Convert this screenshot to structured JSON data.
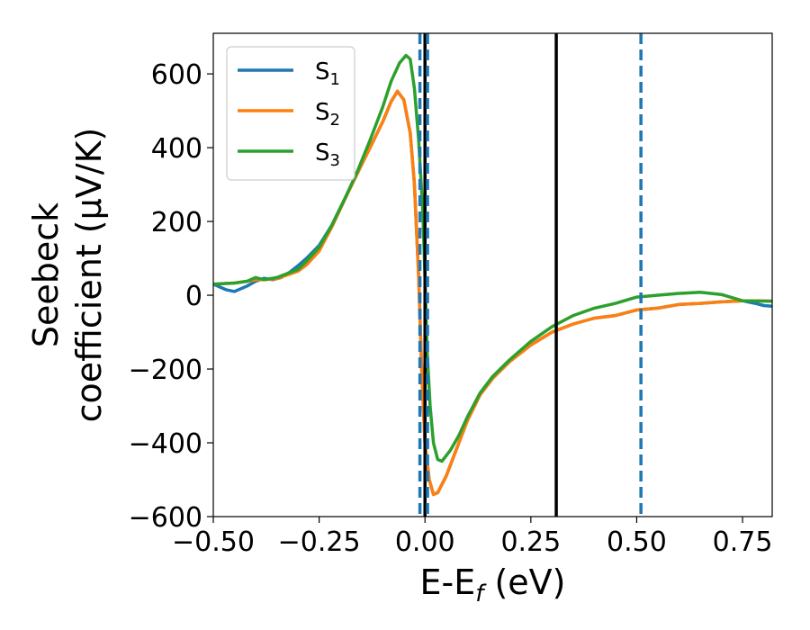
{
  "chart_data": {
    "type": "line",
    "xlabel": {
      "main": "E-E",
      "sub": "f",
      "unit": " (eV)"
    },
    "ylabel": {
      "line1": "Seebeck",
      "line2": "coefficient  (μV/K)"
    },
    "xlim": [
      -0.5,
      0.82
    ],
    "ylim": [
      -600,
      710
    ],
    "xticks": [
      -0.5,
      -0.25,
      0.0,
      0.25,
      0.5,
      0.75
    ],
    "xtick_labels": [
      "−0.50",
      "−0.25",
      "0.00",
      "0.25",
      "0.50",
      "0.75"
    ],
    "yticks": [
      -600,
      -400,
      -200,
      0,
      200,
      400,
      600
    ],
    "ytick_labels": [
      "−600",
      "−400",
      "−200",
      "0",
      "200",
      "400",
      "600"
    ],
    "legend_position": "upper-left",
    "series": [
      {
        "name": "S",
        "sub": "1",
        "color": "#1f77b4",
        "points": [
          [
            -0.5,
            30
          ],
          [
            -0.47,
            15
          ],
          [
            -0.45,
            10
          ],
          [
            -0.42,
            25
          ],
          [
            -0.4,
            38
          ],
          [
            -0.38,
            46
          ],
          [
            -0.36,
            42
          ],
          [
            -0.34,
            48
          ],
          [
            -0.32,
            62
          ],
          [
            -0.3,
            80
          ],
          [
            -0.28,
            100
          ],
          [
            -0.25,
            135
          ],
          [
            -0.22,
            190
          ],
          [
            -0.19,
            260
          ],
          [
            -0.16,
            330
          ],
          [
            -0.13,
            400
          ],
          [
            -0.1,
            470
          ],
          [
            -0.08,
            525
          ],
          [
            -0.065,
            553
          ],
          [
            -0.05,
            530
          ],
          [
            -0.035,
            440
          ],
          [
            -0.025,
            300
          ],
          [
            -0.015,
            50
          ],
          [
            -0.008,
            -200
          ],
          [
            0.0,
            -400
          ],
          [
            0.01,
            -500
          ],
          [
            0.02,
            -540
          ],
          [
            0.03,
            -535
          ],
          [
            0.05,
            -490
          ],
          [
            0.07,
            -430
          ],
          [
            0.1,
            -340
          ],
          [
            0.13,
            -270
          ],
          [
            0.16,
            -225
          ],
          [
            0.2,
            -180
          ],
          [
            0.25,
            -135
          ],
          [
            0.3,
            -100
          ],
          [
            0.35,
            -78
          ],
          [
            0.4,
            -62
          ],
          [
            0.45,
            -55
          ],
          [
            0.5,
            -40
          ],
          [
            0.55,
            -35
          ],
          [
            0.6,
            -25
          ],
          [
            0.65,
            -22
          ],
          [
            0.7,
            -18
          ],
          [
            0.75,
            -15
          ],
          [
            0.78,
            -22
          ],
          [
            0.8,
            -28
          ],
          [
            0.82,
            -30
          ]
        ]
      },
      {
        "name": "S",
        "sub": "2",
        "color": "#ff7f0e",
        "points": [
          [
            -0.5,
            30
          ],
          [
            -0.45,
            33
          ],
          [
            -0.42,
            38
          ],
          [
            -0.4,
            42
          ],
          [
            -0.38,
            42
          ],
          [
            -0.35,
            45
          ],
          [
            -0.3,
            65
          ],
          [
            -0.28,
            82
          ],
          [
            -0.25,
            120
          ],
          [
            -0.22,
            185
          ],
          [
            -0.19,
            258
          ],
          [
            -0.16,
            330
          ],
          [
            -0.13,
            400
          ],
          [
            -0.1,
            470
          ],
          [
            -0.08,
            525
          ],
          [
            -0.065,
            553
          ],
          [
            -0.05,
            530
          ],
          [
            -0.035,
            440
          ],
          [
            -0.025,
            300
          ],
          [
            -0.015,
            50
          ],
          [
            -0.008,
            -200
          ],
          [
            0.0,
            -400
          ],
          [
            0.01,
            -500
          ],
          [
            0.02,
            -540
          ],
          [
            0.03,
            -535
          ],
          [
            0.05,
            -490
          ],
          [
            0.07,
            -430
          ],
          [
            0.1,
            -340
          ],
          [
            0.13,
            -270
          ],
          [
            0.16,
            -225
          ],
          [
            0.2,
            -180
          ],
          [
            0.25,
            -135
          ],
          [
            0.3,
            -100
          ],
          [
            0.35,
            -78
          ],
          [
            0.4,
            -62
          ],
          [
            0.45,
            -55
          ],
          [
            0.5,
            -40
          ],
          [
            0.55,
            -35
          ],
          [
            0.6,
            -25
          ],
          [
            0.65,
            -22
          ],
          [
            0.7,
            -18
          ],
          [
            0.75,
            -15
          ],
          [
            0.78,
            -15
          ],
          [
            0.82,
            -16
          ]
        ]
      },
      {
        "name": "S",
        "sub": "3",
        "color": "#2ca02c",
        "points": [
          [
            -0.5,
            30
          ],
          [
            -0.45,
            33
          ],
          [
            -0.42,
            38
          ],
          [
            -0.4,
            48
          ],
          [
            -0.38,
            42
          ],
          [
            -0.35,
            48
          ],
          [
            -0.3,
            70
          ],
          [
            -0.28,
            92
          ],
          [
            -0.25,
            130
          ],
          [
            -0.22,
            190
          ],
          [
            -0.19,
            260
          ],
          [
            -0.16,
            335
          ],
          [
            -0.13,
            420
          ],
          [
            -0.1,
            510
          ],
          [
            -0.08,
            580
          ],
          [
            -0.06,
            630
          ],
          [
            -0.045,
            650
          ],
          [
            -0.035,
            640
          ],
          [
            -0.025,
            560
          ],
          [
            -0.015,
            420
          ],
          [
            -0.005,
            220
          ],
          [
            0.0,
            50
          ],
          [
            0.005,
            -150
          ],
          [
            0.012,
            -300
          ],
          [
            0.02,
            -400
          ],
          [
            0.03,
            -445
          ],
          [
            0.04,
            -450
          ],
          [
            0.06,
            -420
          ],
          [
            0.08,
            -380
          ],
          [
            0.1,
            -330
          ],
          [
            0.13,
            -265
          ],
          [
            0.16,
            -220
          ],
          [
            0.2,
            -175
          ],
          [
            0.25,
            -125
          ],
          [
            0.3,
            -85
          ],
          [
            0.35,
            -55
          ],
          [
            0.4,
            -35
          ],
          [
            0.45,
            -22
          ],
          [
            0.5,
            -5
          ],
          [
            0.55,
            0
          ],
          [
            0.6,
            5
          ],
          [
            0.65,
            8
          ],
          [
            0.7,
            2
          ],
          [
            0.75,
            -15
          ],
          [
            0.82,
            -16
          ]
        ]
      }
    ],
    "vlines": [
      {
        "x": 0.0,
        "style": "solid",
        "color": "#000000"
      },
      {
        "x": 0.31,
        "style": "solid",
        "color": "#000000"
      },
      {
        "x": -0.012,
        "style": "dashed",
        "color": "#1f77b4"
      },
      {
        "x": 0.006,
        "style": "dashed",
        "color": "#1f77b4"
      },
      {
        "x": 0.51,
        "style": "dashed",
        "color": "#1f77b4"
      }
    ]
  }
}
